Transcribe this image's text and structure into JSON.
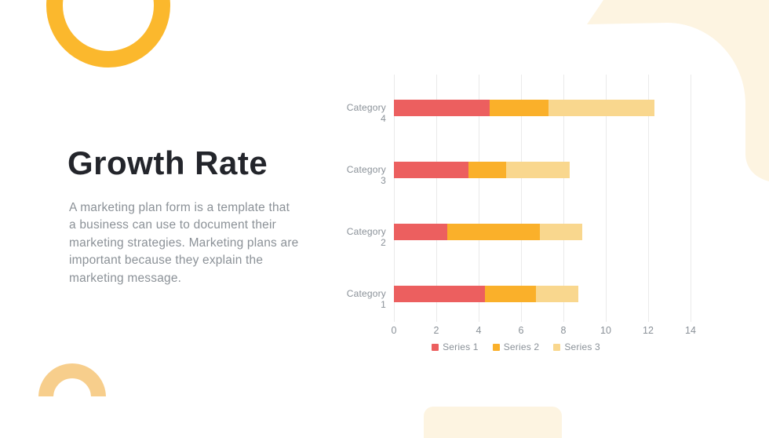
{
  "slide": {
    "title": "Growth Rate",
    "body_lines": [
      "A marketing plan form is a template that",
      "a business can use to document their",
      "marketing strategies. Marketing plans are",
      "important because they explain the",
      "marketing message."
    ]
  },
  "colors": {
    "title_text": "#23252B",
    "body_text": "#8B9197",
    "axis_text": "#8A9198",
    "gridline": "#EAEAEA",
    "ring": "#FBB82D",
    "half_ring": "#F7CE8C",
    "cream_blob": "#FDF4E1"
  },
  "chart_data": {
    "type": "bar",
    "orientation": "horizontal",
    "stacked": true,
    "grid": true,
    "legend_position": "bottom",
    "categories": [
      "Category 1",
      "Category 2",
      "Category 3",
      "Category 4"
    ],
    "display_order_top_to_bottom": [
      "Category 4",
      "Category 3",
      "Category 2",
      "Category 1"
    ],
    "series": [
      {
        "name": "Series 1",
        "color": "#EC5F5F",
        "values": [
          4.3,
          2.5,
          3.5,
          4.5
        ]
      },
      {
        "name": "Series 2",
        "color": "#FAB02A",
        "values": [
          2.4,
          4.4,
          1.8,
          2.8
        ]
      },
      {
        "name": "Series 3",
        "color": "#F9D78E",
        "values": [
          2.0,
          2.0,
          3.0,
          5.0
        ]
      }
    ],
    "x_ticks": [
      0,
      2,
      4,
      6,
      8,
      10,
      12,
      14
    ],
    "xlim": [
      0,
      14
    ]
  }
}
